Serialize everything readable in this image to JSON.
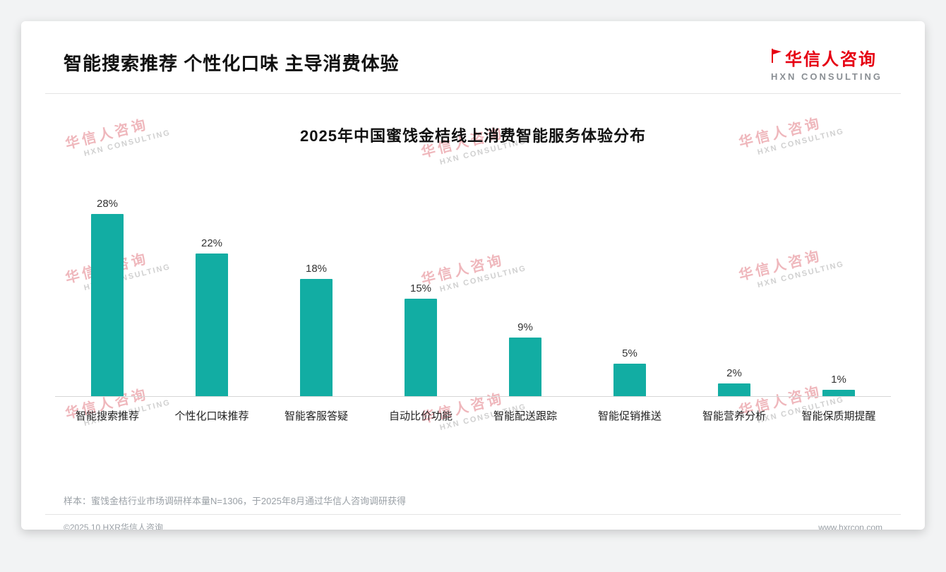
{
  "page": {
    "header_title": "智能搜索推荐 个性化口味 主导消费体验",
    "logo": {
      "cn": "华信人咨询",
      "en": "HXN CONSULTING"
    },
    "watermark": {
      "cn": "华信人咨询",
      "en": "HXN CONSULTING"
    },
    "footnote": "样本：蜜饯金桔行业市场调研样本量N=1306，于2025年8月通过华信人咨询调研获得",
    "footer_left": "©2025.10 HXR华信人咨询",
    "footer_right": "www.hxrcon.com"
  },
  "chart_data": {
    "type": "bar",
    "title": "2025年中国蜜饯金桔线上消费智能服务体验分布",
    "categories": [
      "智能搜索推荐",
      "个性化口味推荐",
      "智能客服答疑",
      "自动比价功能",
      "智能配送跟踪",
      "智能促销推送",
      "智能营养分析",
      "智能保质期提醒"
    ],
    "values": [
      28,
      22,
      18,
      15,
      9,
      5,
      2,
      1
    ],
    "unit": "%",
    "bar_color": "#12ada3",
    "xlabel": "",
    "ylabel": "",
    "ylim": [
      0,
      32
    ],
    "grid": false,
    "legend": "none"
  }
}
